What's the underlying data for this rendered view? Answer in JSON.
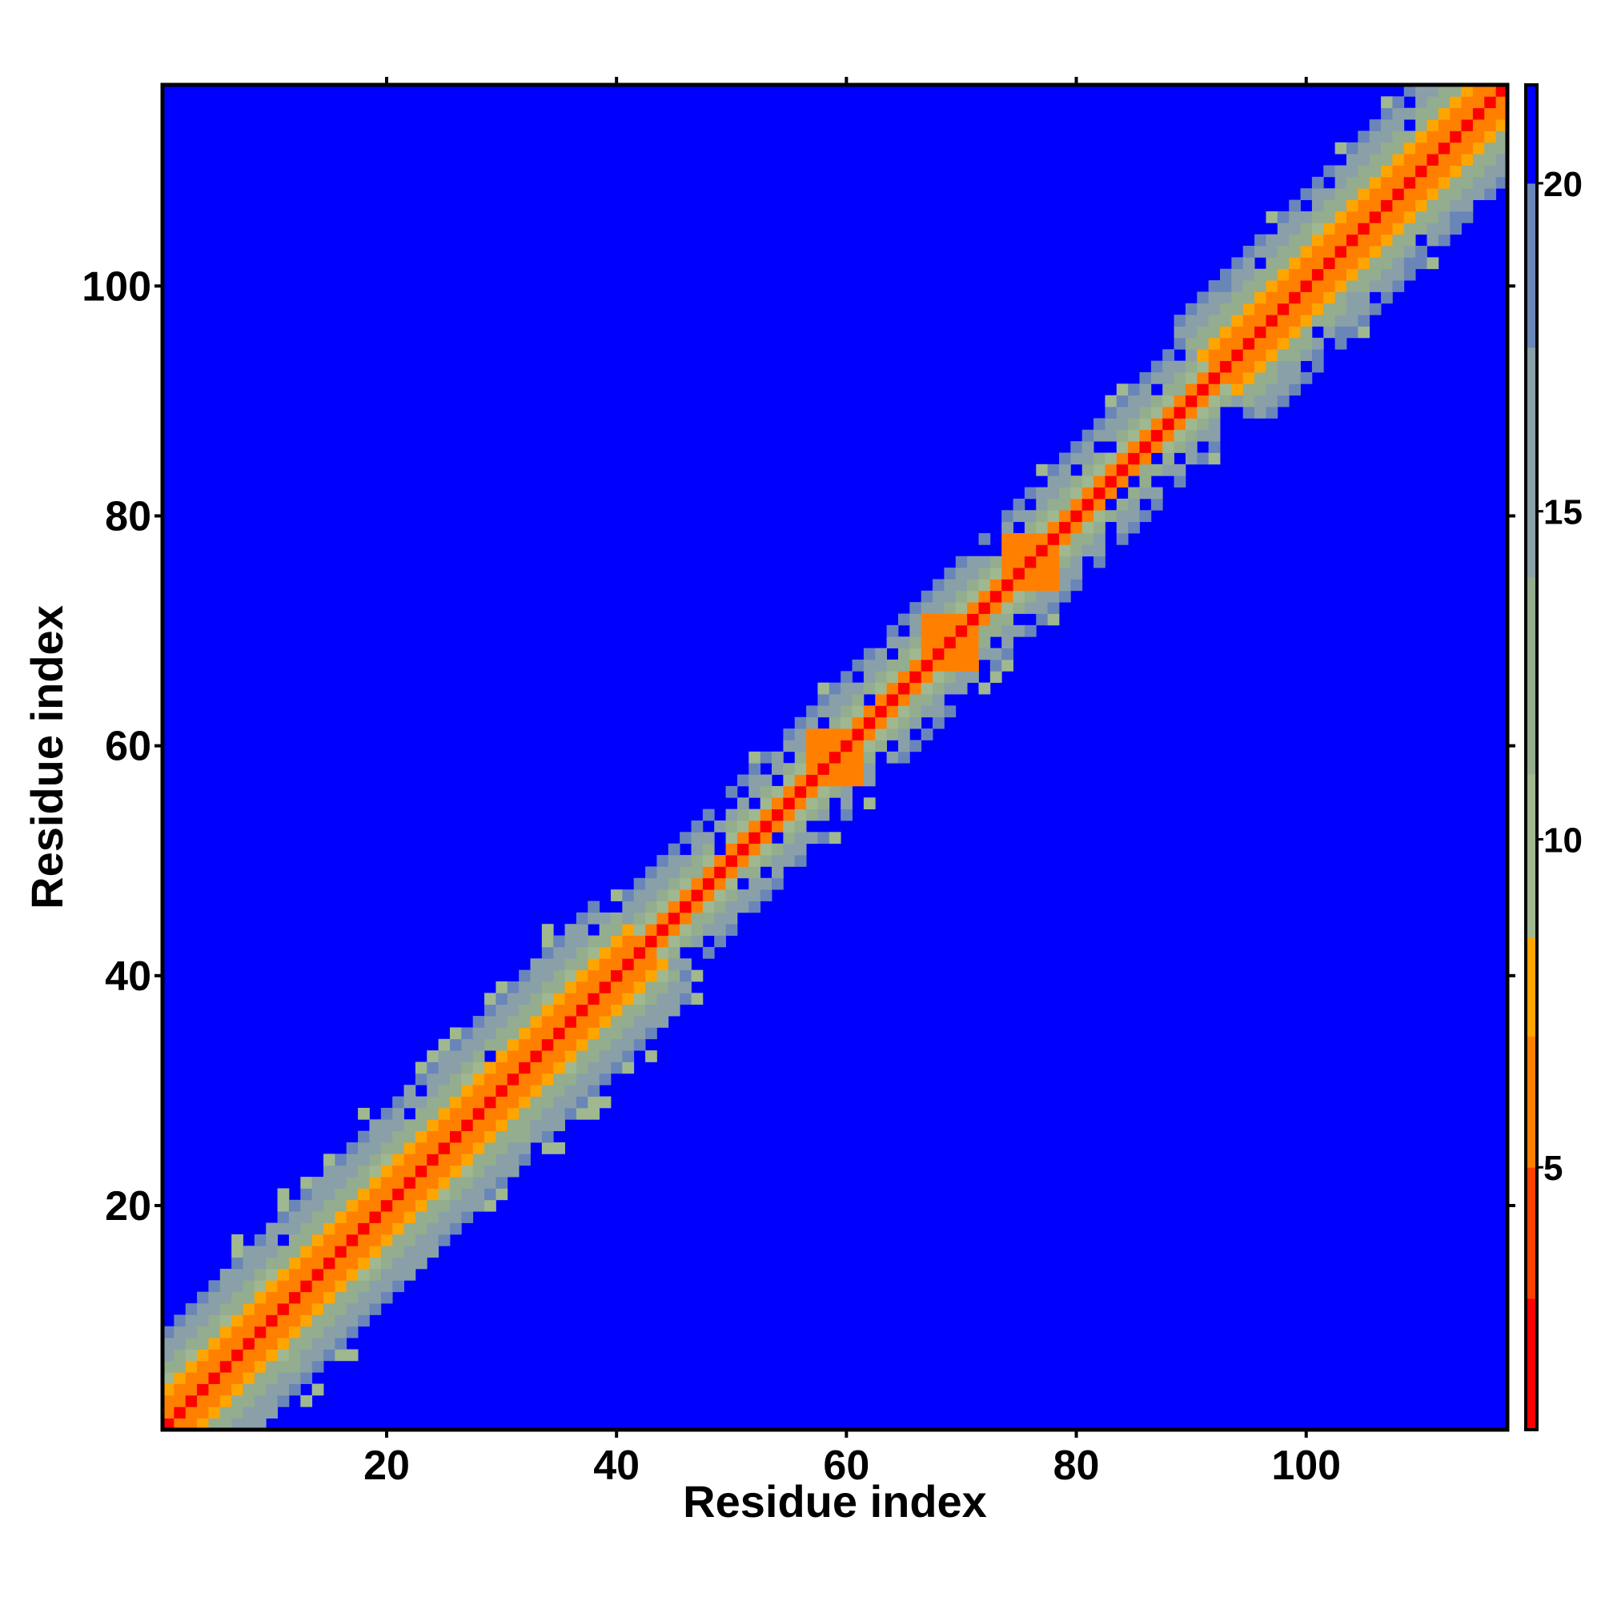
{
  "chart_data": {
    "type": "heatmap",
    "title": "",
    "xlabel": "Residue index",
    "ylabel": "Residue index",
    "n_residues": 117,
    "xlim": [
      1,
      117
    ],
    "ylim": [
      1,
      117
    ],
    "x_ticks": [
      "20",
      "40",
      "60",
      "80",
      "100"
    ],
    "y_ticks": [
      "20",
      "40",
      "60",
      "80",
      "100"
    ],
    "colorbar": {
      "range": [
        1,
        21.5
      ],
      "ticks": [
        "5",
        "10",
        "15",
        "20"
      ],
      "levels": [
        {
          "max": 3,
          "color": "#ff0000"
        },
        {
          "max": 5,
          "color": "#ff4000"
        },
        {
          "max": 7,
          "color": "#ff8000"
        },
        {
          "max": 8.5,
          "color": "#ffa500"
        },
        {
          "max": 11,
          "color": "#a0b890"
        },
        {
          "max": 14,
          "color": "#93ad8e"
        },
        {
          "max": 17.5,
          "color": "#8aa0a8"
        },
        {
          "max": 20,
          "color": "#6a86b8"
        },
        {
          "max": 999,
          "color": "#0000ff"
        }
      ]
    },
    "band_segments": [
      {
        "from": 1,
        "to": 42,
        "core": 0.6,
        "orange": 3.0,
        "green": 8.5,
        "hole_rate": 0.02
      },
      {
        "from": 43,
        "to": 92,
        "core": 0.7,
        "orange": 1.6,
        "green": 6.0,
        "hole_rate": 0.3
      },
      {
        "from": 93,
        "to": 117,
        "core": 0.7,
        "orange": 3.0,
        "green": 8.0,
        "hole_rate": 0.08
      }
    ],
    "orange_patches": [
      {
        "i": 70,
        "j": 68
      },
      {
        "i": 68,
        "j": 70
      },
      {
        "i": 77,
        "j": 75
      },
      {
        "i": 75,
        "j": 77
      },
      {
        "i": 58,
        "j": 60
      },
      {
        "i": 60,
        "j": 58
      }
    ]
  }
}
